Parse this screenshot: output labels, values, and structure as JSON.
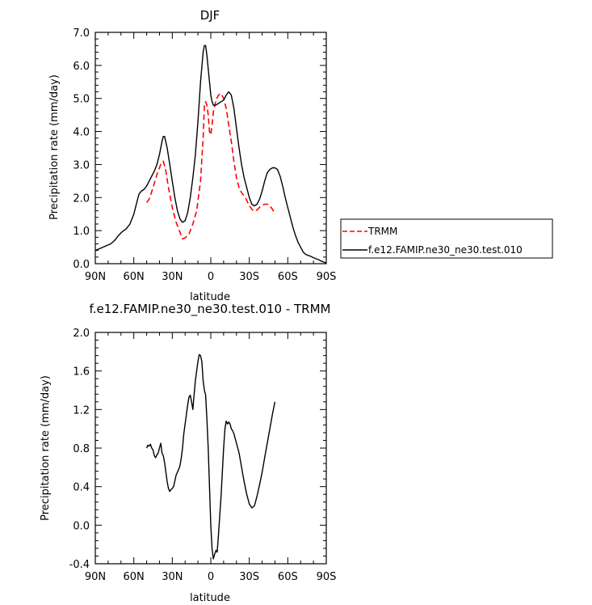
{
  "chart_data": [
    {
      "type": "line",
      "title": "DJF",
      "xlabel": "latitude",
      "ylabel": "Precipitation rate (mm/day)",
      "xlim": [
        -90,
        90
      ],
      "ylim": [
        0,
        7
      ],
      "xticks": [
        -90,
        -60,
        -30,
        0,
        30,
        60,
        90
      ],
      "xtick_labels": [
        "90N",
        "60N",
        "30N",
        "0",
        "30S",
        "60S",
        "90S"
      ],
      "yticks": [
        0,
        1,
        2,
        3,
        4,
        5,
        6,
        7
      ],
      "ytick_labels": [
        "0.0",
        "1.0",
        "2.0",
        "3.0",
        "4.0",
        "5.0",
        "6.0",
        "7.0"
      ],
      "legend_position": "right",
      "series": [
        {
          "name": "TRMM",
          "color": "#ff0000",
          "dash": "dashed",
          "x": [
            -50,
            -48,
            -45,
            -42,
            -39,
            -37,
            -35,
            -33,
            -30,
            -27,
            -24,
            -22,
            -20,
            -17,
            -14,
            -11,
            -8,
            -6,
            -5,
            -4,
            -3,
            -2,
            -1,
            0,
            1,
            2,
            4,
            6,
            8,
            10,
            12,
            14,
            16,
            18,
            20,
            22,
            24,
            27,
            30,
            33,
            36,
            39,
            42,
            45,
            48,
            50
          ],
          "y": [
            1.85,
            1.95,
            2.3,
            2.7,
            3.0,
            3.1,
            2.8,
            2.3,
            1.7,
            1.25,
            0.95,
            0.75,
            0.78,
            0.9,
            1.2,
            1.6,
            2.5,
            3.8,
            4.8,
            4.9,
            4.8,
            4.5,
            4.0,
            3.9,
            4.2,
            4.6,
            4.95,
            5.1,
            5.15,
            5.0,
            4.7,
            4.2,
            3.7,
            3.1,
            2.6,
            2.3,
            2.15,
            2.0,
            1.75,
            1.6,
            1.62,
            1.75,
            1.8,
            1.8,
            1.65,
            1.5
          ]
        },
        {
          "name": "f.e12.FAMIP.ne30_ne30.test.010",
          "color": "#000000",
          "dash": "solid",
          "x": [
            -90,
            -87,
            -84,
            -81,
            -78,
            -75,
            -72,
            -69,
            -66,
            -63,
            -60,
            -58,
            -56,
            -54,
            -52,
            -50,
            -48,
            -46,
            -44,
            -42,
            -40,
            -38,
            -37,
            -36,
            -34,
            -32,
            -30,
            -28,
            -26,
            -24,
            -22,
            -20,
            -18,
            -16,
            -14,
            -12,
            -10,
            -8,
            -6,
            -5,
            -4,
            -3,
            -2,
            -1,
            0,
            1,
            2,
            4,
            6,
            8,
            10,
            12,
            14,
            16,
            18,
            20,
            22,
            24,
            26,
            28,
            30,
            32,
            34,
            36,
            38,
            40,
            42,
            44,
            46,
            48,
            50,
            52,
            54,
            56,
            58,
            60,
            62,
            64,
            66,
            68,
            70,
            72,
            74,
            76,
            78,
            80,
            82,
            84,
            86,
            88,
            90
          ],
          "y": [
            0.4,
            0.45,
            0.5,
            0.55,
            0.6,
            0.7,
            0.85,
            0.97,
            1.05,
            1.2,
            1.5,
            1.8,
            2.1,
            2.2,
            2.25,
            2.35,
            2.5,
            2.65,
            2.8,
            3.0,
            3.3,
            3.7,
            3.85,
            3.85,
            3.5,
            3.0,
            2.5,
            2.0,
            1.6,
            1.35,
            1.25,
            1.3,
            1.55,
            2.0,
            2.6,
            3.3,
            4.3,
            5.5,
            6.4,
            6.6,
            6.6,
            6.3,
            5.9,
            5.5,
            5.1,
            4.9,
            4.8,
            4.8,
            4.85,
            4.9,
            4.95,
            5.1,
            5.2,
            5.1,
            4.7,
            4.1,
            3.5,
            3.0,
            2.6,
            2.3,
            2.0,
            1.8,
            1.75,
            1.8,
            1.95,
            2.2,
            2.5,
            2.75,
            2.85,
            2.9,
            2.9,
            2.85,
            2.65,
            2.35,
            2.0,
            1.7,
            1.4,
            1.1,
            0.85,
            0.65,
            0.5,
            0.35,
            0.28,
            0.25,
            0.22,
            0.18,
            0.15,
            0.12,
            0.08,
            0.05,
            0.02
          ]
        }
      ]
    },
    {
      "type": "line",
      "title": "f.e12.FAMIP.ne30_ne30.test.010 - TRMM",
      "xlabel": "latitude",
      "ylabel": "Precipitation rate (mm/day)",
      "xlim": [
        -90,
        90
      ],
      "ylim": [
        -0.4,
        2.0
      ],
      "xticks": [
        -90,
        -60,
        -30,
        0,
        30,
        60,
        90
      ],
      "xtick_labels": [
        "90N",
        "60N",
        "30N",
        "0",
        "30S",
        "60S",
        "90S"
      ],
      "yticks": [
        -0.4,
        0.0,
        0.4,
        0.8,
        1.2,
        1.6,
        2.0
      ],
      "ytick_labels": [
        "-0.4",
        "0.0",
        "0.4",
        "0.8",
        "1.2",
        "1.6",
        "2.0"
      ],
      "series": [
        {
          "color": "#000000",
          "dash": "solid",
          "x": [
            -50,
            -49,
            -48,
            -47,
            -46,
            -45,
            -44,
            -43,
            -42,
            -41,
            -40,
            -39,
            -38,
            -37,
            -36,
            -35,
            -34,
            -33,
            -32,
            -31,
            -30,
            -29,
            -28,
            -27,
            -26,
            -25,
            -24,
            -23,
            -22,
            -21,
            -20,
            -19,
            -18,
            -17,
            -16,
            -15,
            -14,
            -13,
            -12,
            -11,
            -10,
            -9,
            -8,
            -7,
            -6,
            -5,
            -4,
            -3,
            -2,
            -1,
            0,
            1,
            2,
            3,
            4,
            5,
            6,
            7,
            8,
            9,
            10,
            11,
            12,
            13,
            14,
            15,
            16,
            17,
            18,
            19,
            20,
            22,
            24,
            26,
            28,
            30,
            32,
            34,
            36,
            38,
            40,
            42,
            44,
            46,
            48,
            50
          ],
          "y": [
            0.8,
            0.83,
            0.82,
            0.84,
            0.8,
            0.78,
            0.72,
            0.7,
            0.73,
            0.75,
            0.8,
            0.85,
            0.75,
            0.72,
            0.65,
            0.55,
            0.45,
            0.38,
            0.35,
            0.37,
            0.38,
            0.4,
            0.46,
            0.52,
            0.55,
            0.58,
            0.62,
            0.7,
            0.8,
            0.95,
            1.05,
            1.15,
            1.25,
            1.33,
            1.35,
            1.28,
            1.2,
            1.35,
            1.5,
            1.6,
            1.7,
            1.77,
            1.76,
            1.7,
            1.5,
            1.4,
            1.35,
            1.1,
            0.8,
            0.4,
            0.0,
            -0.25,
            -0.35,
            -0.3,
            -0.26,
            -0.28,
            -0.1,
            0.1,
            0.3,
            0.55,
            0.8,
            1.0,
            1.08,
            1.05,
            1.07,
            1.05,
            1.0,
            0.98,
            0.95,
            0.9,
            0.85,
            0.75,
            0.6,
            0.45,
            0.32,
            0.22,
            0.18,
            0.2,
            0.3,
            0.42,
            0.55,
            0.7,
            0.85,
            1.0,
            1.15,
            1.28
          ]
        }
      ]
    }
  ]
}
